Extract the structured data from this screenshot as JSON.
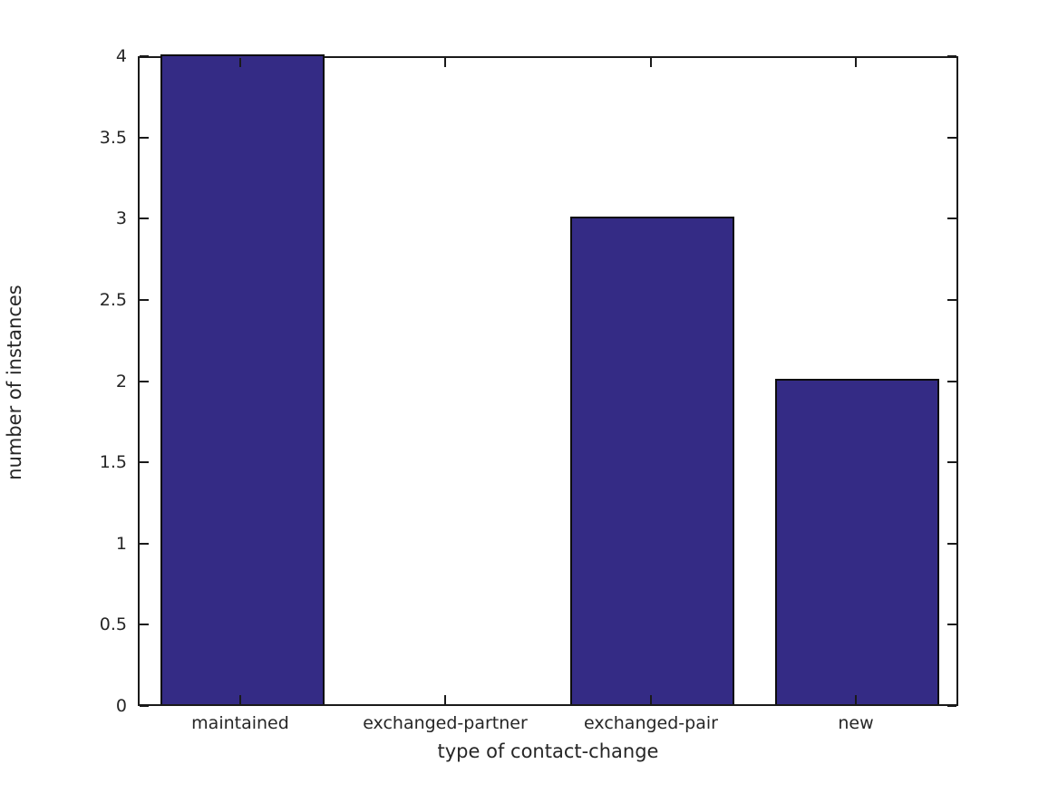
{
  "chart_data": {
    "type": "bar",
    "categories": [
      "maintained",
      "exchanged-partner",
      "exchanged-pair",
      "new"
    ],
    "values": [
      4,
      0,
      3,
      2
    ],
    "title": "",
    "xlabel": "type of contact-change",
    "ylabel": "number of instances",
    "ylim": [
      0,
      4
    ],
    "yticks": [
      0,
      0.5,
      1,
      1.5,
      2,
      2.5,
      3,
      3.5,
      4
    ],
    "ytick_labels": [
      "0",
      "0.5",
      "1",
      "1.5",
      "2",
      "2.5",
      "3",
      "3.5",
      "4"
    ],
    "legend_position": "none",
    "grid": false,
    "bar_width_fraction": 0.8,
    "colors": {
      "bar_fill": "#342b85",
      "bar_edge": "#0d0d0d",
      "axis": "#1a1a1a",
      "text": "#262626",
      "background": "#ffffff"
    }
  }
}
